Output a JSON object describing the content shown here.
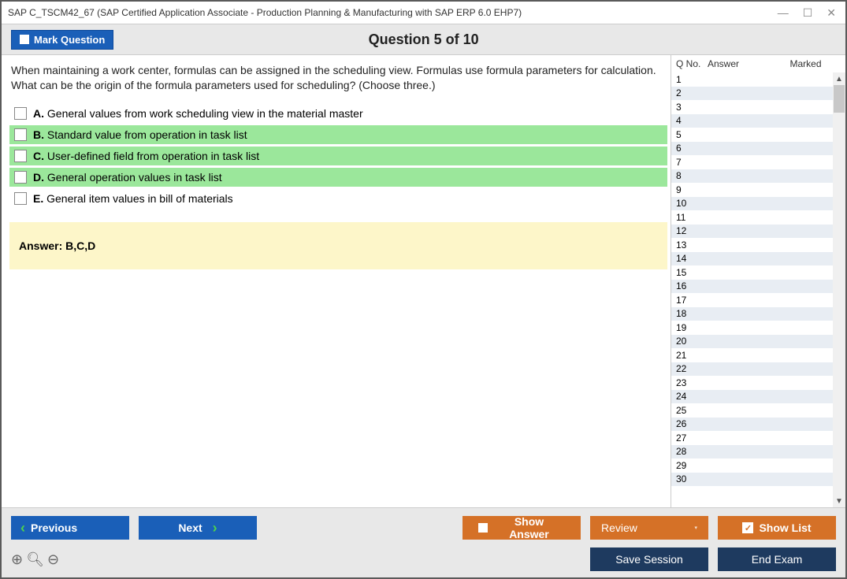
{
  "window": {
    "title": "SAP C_TSCM42_67 (SAP Certified Application Associate - Production Planning & Manufacturing with SAP ERP 6.0 EHP7)"
  },
  "header": {
    "mark_label": "Mark Question",
    "question_title": "Question 5 of 10"
  },
  "question": {
    "text": "When maintaining a work center, formulas can be assigned in the scheduling view. Formulas use formula parameters for calculation. What can be the origin of the formula parameters used for scheduling? (Choose three.)",
    "options": [
      {
        "letter": "A.",
        "text": "General values from work scheduling view in the material master",
        "correct": false
      },
      {
        "letter": "B.",
        "text": "Standard value from operation in task list",
        "correct": true
      },
      {
        "letter": "C.",
        "text": "User-defined field from operation in task list",
        "correct": true
      },
      {
        "letter": "D.",
        "text": "General operation values in task list",
        "correct": true
      },
      {
        "letter": "E.",
        "text": "General item values in bill of materials",
        "correct": false
      }
    ],
    "answer_label": "Answer: B,C,D"
  },
  "sidepanel": {
    "col_q": "Q No.",
    "col_a": "Answer",
    "col_m": "Marked",
    "rows": 30
  },
  "footer": {
    "previous": "Previous",
    "next": "Next",
    "show_answer": "Show Answer",
    "review": "Review",
    "show_list": "Show List",
    "save_session": "Save Session",
    "end_exam": "End Exam"
  },
  "colors": {
    "correct_bg": "#9be79b",
    "answer_bg": "#fdf6c9",
    "btn_blue": "#1a5fb8",
    "btn_orange": "#d57127",
    "btn_navy": "#1e3a5f"
  }
}
